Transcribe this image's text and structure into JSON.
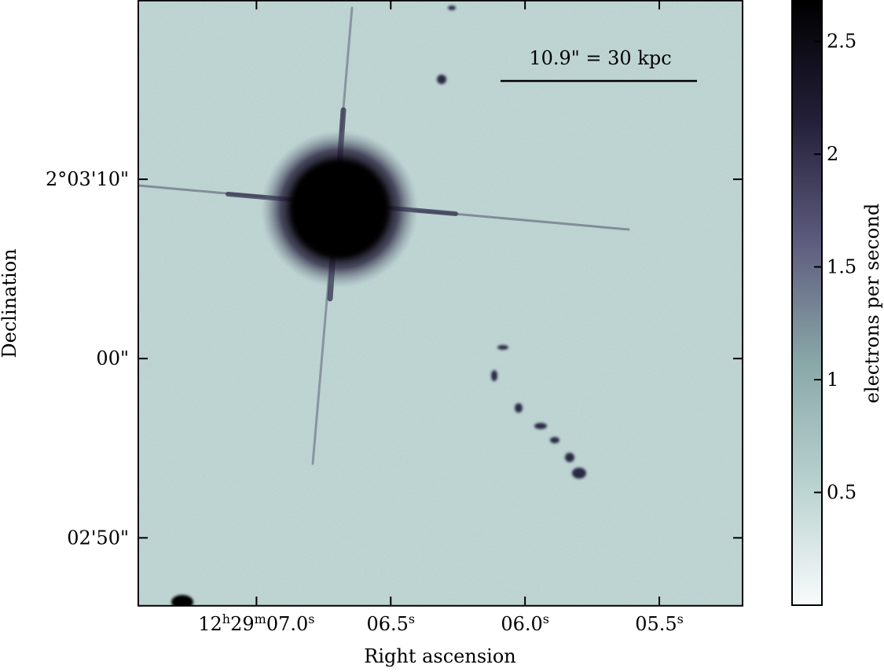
{
  "chart_data": {
    "type": "image",
    "annotation": "10.9\" = 30 kpc",
    "xlabel": "Right ascension",
    "ylabel": "Declination",
    "xlim": [
      7.44,
      5.19
    ],
    "xticks": [
      {
        "value": 7.0,
        "label": [
          "12",
          "h",
          "29",
          "m",
          "07.0",
          "s"
        ]
      },
      {
        "value": 6.5,
        "label": [
          "06.5",
          "s"
        ]
      },
      {
        "value": 6.0,
        "label": [
          "06.0",
          "s"
        ]
      },
      {
        "value": 5.5,
        "label": [
          "05.5",
          "s"
        ]
      }
    ],
    "ylim": [
      -13.8,
      20
    ],
    "yticks": [
      {
        "value": 10,
        "label": "2°03'10\""
      },
      {
        "value": 0,
        "label": "00\""
      },
      {
        "value": -10,
        "label": "02'50\""
      }
    ],
    "colorbar": {
      "label": "electrons per second",
      "lim": [
        0,
        2.68
      ],
      "ticks": [
        0.5,
        1.0,
        1.5,
        2.0,
        2.5
      ],
      "colormap": [
        "#f8fbfb",
        "#b9d2d0",
        "#8aa8a8",
        "#5e5c7e",
        "#24203a",
        "#000000"
      ]
    }
  }
}
